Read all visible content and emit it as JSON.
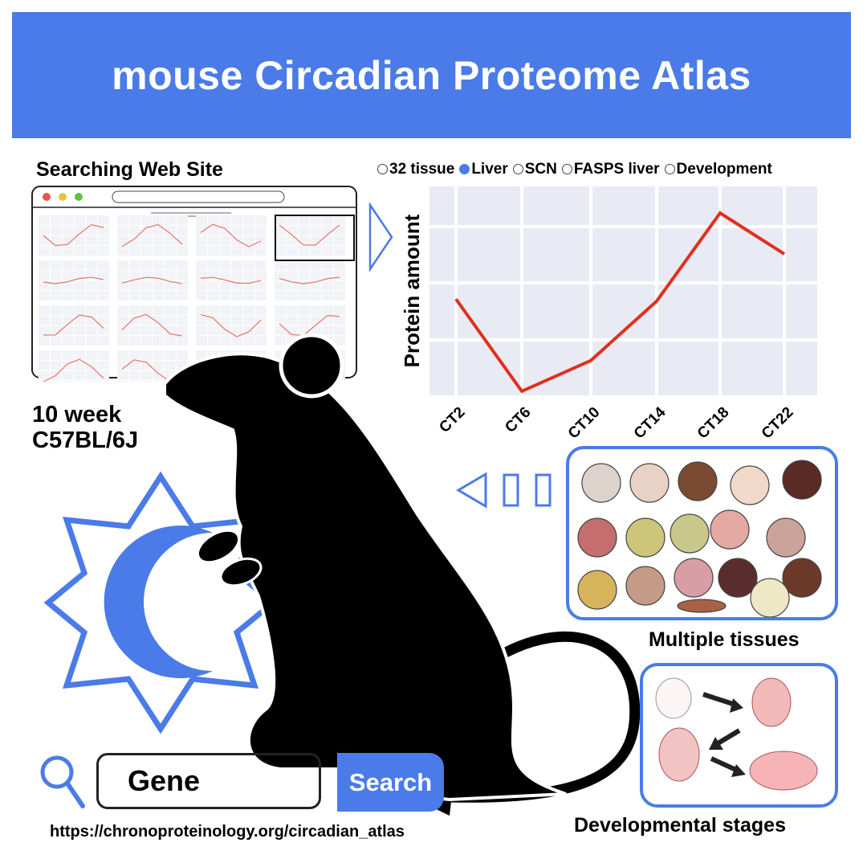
{
  "header": {
    "title": "mouse Circadian Proteome Atlas"
  },
  "website": {
    "label": "Searching Web Site"
  },
  "mouse_info": {
    "line1": "10 week",
    "line2": "C57BL/6J"
  },
  "legend": {
    "options": [
      {
        "label": "32 tissue",
        "selected": false
      },
      {
        "label": "Liver",
        "selected": true
      },
      {
        "label": "SCN",
        "selected": false
      },
      {
        "label": "FASPS liver",
        "selected": false
      },
      {
        "label": "Development",
        "selected": false
      }
    ]
  },
  "chart_data": {
    "type": "line",
    "categories": [
      "CT2",
      "CT6",
      "CT10",
      "CT14",
      "CT18",
      "CT22"
    ],
    "values": [
      0.45,
      0.0,
      0.15,
      0.44,
      0.87,
      0.67
    ],
    "ylabel": "Protein amount",
    "xlabel": "",
    "ylim": [
      -0.02,
      1.0
    ],
    "grid": true,
    "line_color": "#e0301e",
    "panel_color": "#e8ebf3"
  },
  "tissues": {
    "label": "Multiple tissues"
  },
  "development": {
    "label": "Developmental stages"
  },
  "search": {
    "input_value": "Gene",
    "button_label": "Search",
    "url": "https://chronoproteinology.org/circadian_atlas"
  },
  "colors": {
    "accent": "#4a7be8",
    "silhouette": "#000000"
  }
}
